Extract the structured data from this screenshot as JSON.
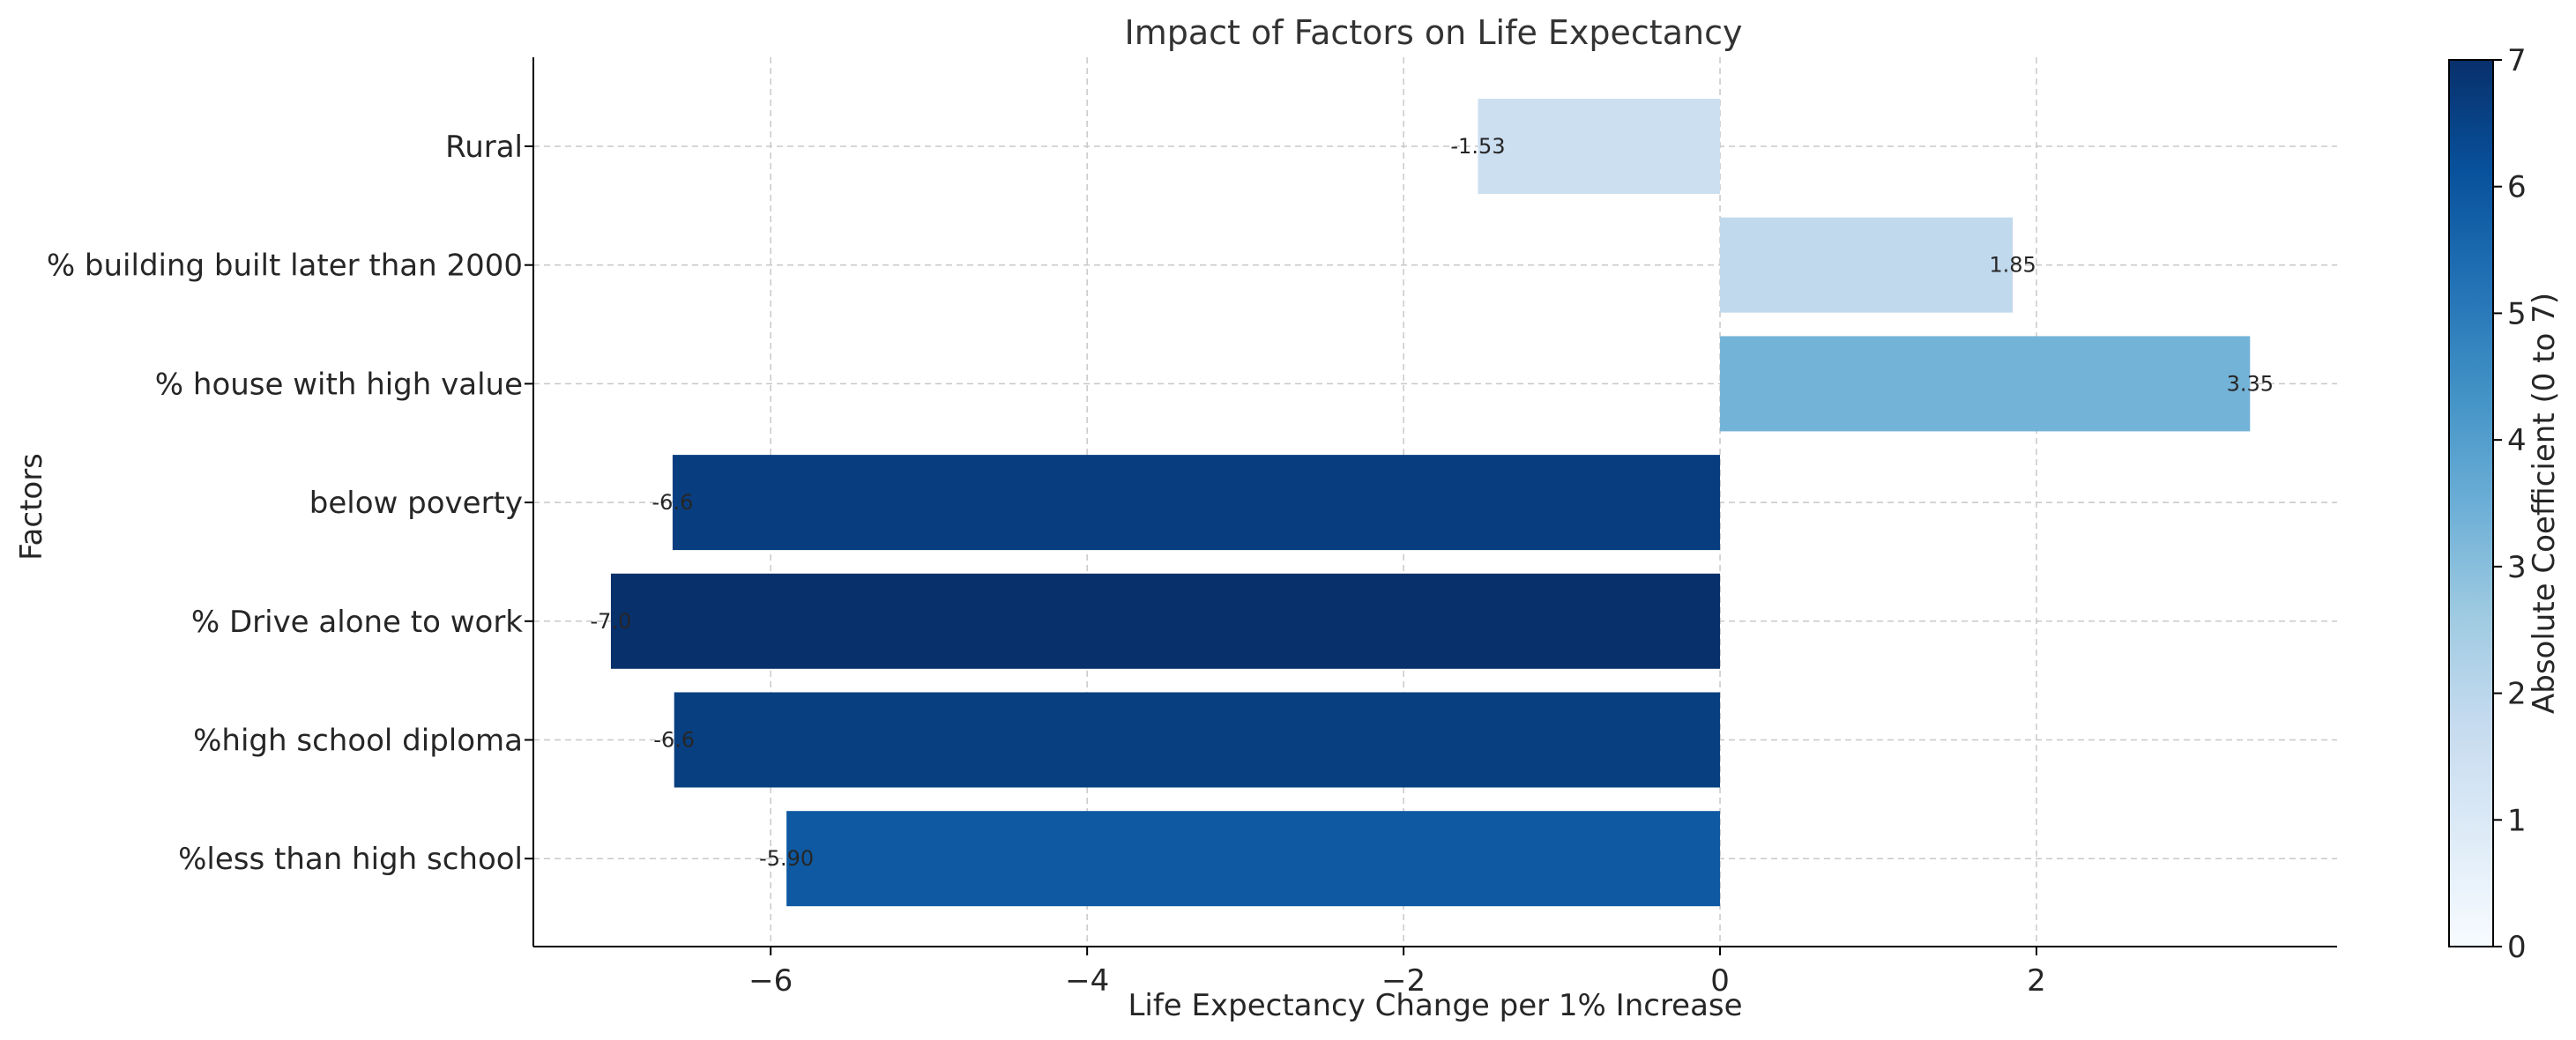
{
  "chart_data": {
    "type": "bar",
    "orientation": "horizontal",
    "title": "Impact of Factors on Life Expectancy",
    "xlabel": "Life Expectancy Change per 1% Increase",
    "ylabel": "Factors",
    "xlim": [
      -7.5,
      3.9
    ],
    "x_ticks": [
      -6,
      -4,
      -2,
      0,
      2
    ],
    "x_tick_labels": [
      "−6",
      "−4",
      "−2",
      "0",
      "2"
    ],
    "grid": true,
    "categories": [
      "Rural",
      "% building built later than 2000",
      "% house with high value",
      "below poverty",
      "% Drive alone to work",
      "%high school diploma",
      "%less than high school"
    ],
    "values": [
      -1.53,
      1.85,
      3.35,
      -6.62,
      -7.01,
      -6.61,
      -5.9
    ],
    "value_labels": [
      "-1.53",
      "1.85",
      "3.35",
      "-6.6",
      "-7.0",
      "-6.6",
      "-5.90"
    ],
    "colorbar": {
      "label": "Absolute Coefficient (0 to 7)",
      "range": [
        0,
        7
      ],
      "ticks": [
        "0",
        "1",
        "2",
        "3",
        "4",
        "5",
        "6",
        "7"
      ],
      "colormap": "Blues"
    },
    "colors": {
      "cmap_stops": [
        "#f7fbff",
        "#deebf7",
        "#c6dbef",
        "#9ecae1",
        "#6baed6",
        "#4292c6",
        "#2171b5",
        "#08519c",
        "#08306b"
      ]
    }
  }
}
